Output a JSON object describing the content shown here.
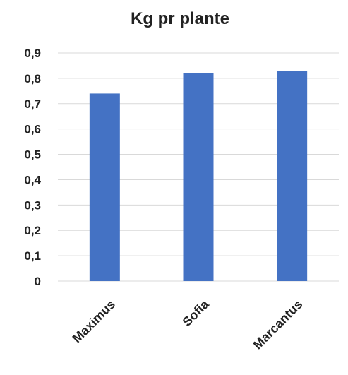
{
  "chart_data": {
    "type": "bar",
    "title": "Kg pr plante",
    "categories": [
      "Maximus",
      "Sofia",
      "Marcantus"
    ],
    "values": [
      0.74,
      0.82,
      0.83
    ],
    "ylim": [
      0,
      0.9
    ],
    "yticks": [
      "0",
      "0,1",
      "0,2",
      "0,3",
      "0,4",
      "0,5",
      "0,6",
      "0,7",
      "0,8",
      "0,9"
    ],
    "grid": true,
    "bar_color": "#4472C4"
  }
}
